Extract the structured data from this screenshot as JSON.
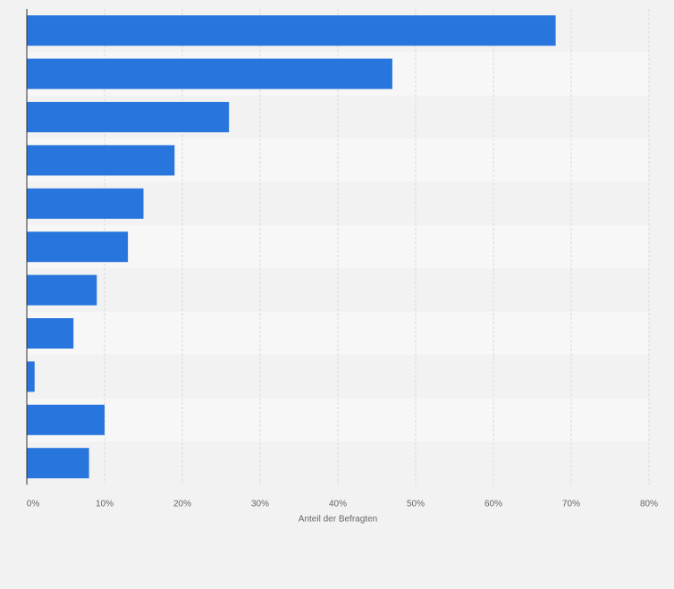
{
  "chart_data": {
    "type": "bar",
    "orientation": "horizontal",
    "values": [
      68,
      47,
      26,
      19,
      15,
      13,
      9,
      6,
      1,
      10,
      8
    ],
    "xlabel": "Anteil der Befragten",
    "ylabel": "",
    "xlim": [
      0,
      80
    ],
    "ticks": [
      {
        "value": 0,
        "label": "0%"
      },
      {
        "value": 10,
        "label": "10%"
      },
      {
        "value": 20,
        "label": "20%"
      },
      {
        "value": 30,
        "label": "30%"
      },
      {
        "value": 40,
        "label": "40%"
      },
      {
        "value": 50,
        "label": "50%"
      },
      {
        "value": 60,
        "label": "60%"
      },
      {
        "value": 70,
        "label": "70%"
      },
      {
        "value": 80,
        "label": "80%"
      }
    ],
    "grid": true,
    "legend": "none",
    "colors": {
      "bar": "#2876dd",
      "band_light": "#f7f7f7",
      "band_dark": "#f2f2f2",
      "grid": "#d9d9d9",
      "axis": "#333333",
      "text": "#666666",
      "background": "#f2f2f2"
    }
  }
}
